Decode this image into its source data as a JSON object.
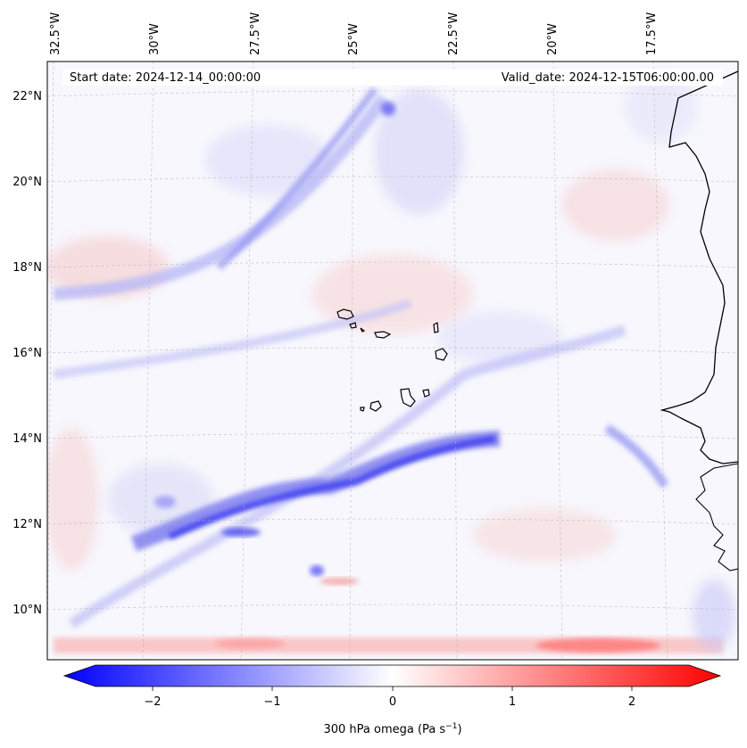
{
  "map": {
    "start_date_label": "Start date: 2024-12-14_00:00:00",
    "valid_date_label": "Valid_date: 2024-12-15T06:00:00.00",
    "longitude_labels": [
      "32.5°W",
      "30°W",
      "27.5°W",
      "25°W",
      "22.5°W",
      "20°W",
      "17.5°W"
    ],
    "latitude_labels": [
      "22°N",
      "20°N",
      "18°N",
      "16°N",
      "14°N",
      "12°N",
      "10°N"
    ],
    "features": {
      "coastline": "West African coast",
      "islands": "Cape Verde Islands"
    }
  },
  "colorbar": {
    "ticks": [
      "−2",
      "−1",
      "0",
      "1",
      "2"
    ],
    "label": "300 hPa omega (Pa s",
    "label_sup": "−1",
    "label_close": ")",
    "min_color": "#0000ff",
    "mid_color": "#ffffff",
    "max_color": "#ff0000"
  }
}
